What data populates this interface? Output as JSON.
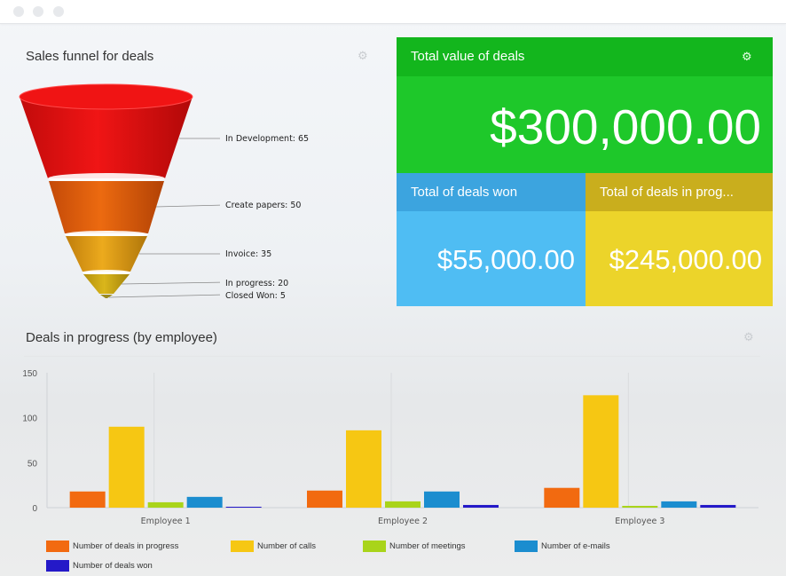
{
  "funnel": {
    "title": "Sales funnel for deals",
    "stages": [
      {
        "label": "In Development: 65",
        "value": 65,
        "color": "#e8100f"
      },
      {
        "label": "Create papers: 50",
        "value": 50,
        "color": "#e35b0a"
      },
      {
        "label": "Invoice: 35",
        "value": 35,
        "color": "#e49a11"
      },
      {
        "label": "In progress: 20",
        "value": 20,
        "color": "#cfa511"
      },
      {
        "label": "Closed Won: 5",
        "value": 5,
        "color": "#9a8a20"
      }
    ]
  },
  "tiles": {
    "total_value": {
      "label": "Total value of deals",
      "value": "$300,000.00",
      "head_color": "#13b61d",
      "body_color": "#1ec82a"
    },
    "deals_won": {
      "label": "Total of deals won",
      "value": "$55,000.00",
      "head_color": "#3ca4df",
      "body_color": "#4fbdf3"
    },
    "deals_in_progress": {
      "label": "Total of deals in prog...",
      "value": "$245,000.00",
      "head_color": "#c9ae1d",
      "body_color": "#ecd42a"
    }
  },
  "chart_data": {
    "type": "bar",
    "title": "Deals in progress (by employee)",
    "categories": [
      "Employee 1",
      "Employee 2",
      "Employee 3"
    ],
    "ylim": [
      0,
      150
    ],
    "yticks": [
      "150",
      "100",
      "50",
      "0"
    ],
    "series": [
      {
        "name": "Number of deals in progress",
        "color": "#f26a10",
        "values": [
          18,
          19,
          22
        ]
      },
      {
        "name": "Number of calls",
        "color": "#f6c713",
        "values": [
          90,
          86,
          125
        ]
      },
      {
        "name": "Number of meetings",
        "color": "#a9d41a",
        "values": [
          6,
          7,
          2
        ]
      },
      {
        "name": "Number of e-mails",
        "color": "#1b8dcf",
        "values": [
          12,
          18,
          7
        ]
      },
      {
        "name": "Number of deals won",
        "color": "#2419c8",
        "values": [
          1,
          3,
          3
        ]
      }
    ]
  }
}
